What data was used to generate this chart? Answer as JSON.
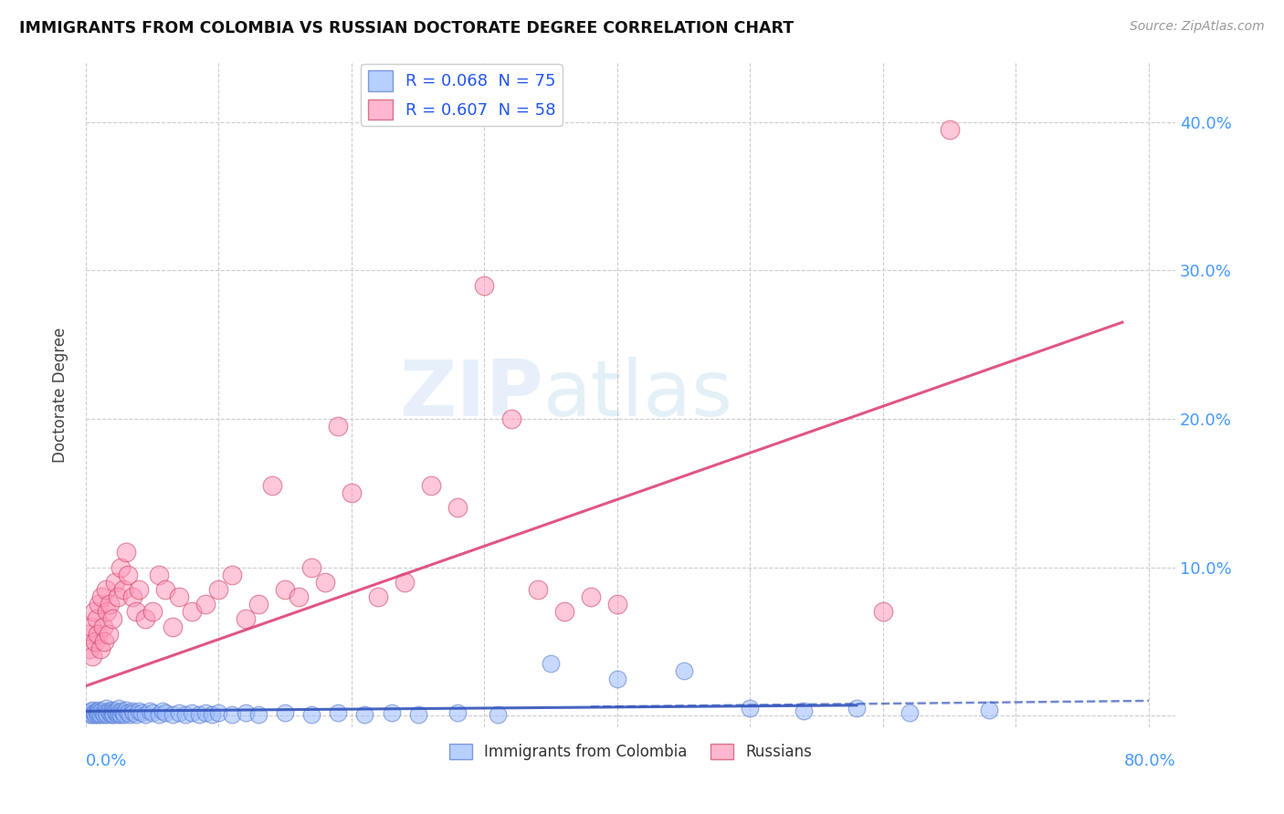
{
  "title": "IMMIGRANTS FROM COLOMBIA VS RUSSIAN DOCTORATE DEGREE CORRELATION CHART",
  "source": "Source: ZipAtlas.com",
  "ylabel": "Doctorate Degree",
  "ytick_values": [
    0.0,
    0.1,
    0.2,
    0.3,
    0.4
  ],
  "xlim": [
    0.0,
    0.82
  ],
  "ylim": [
    -0.008,
    0.44
  ],
  "legend_colombia": "R = 0.068  N = 75",
  "legend_russia": "R = 0.607  N = 58",
  "colombia_color": "#99BBFF",
  "russia_color": "#FF99BB",
  "colombia_edge": "#5577CC",
  "russia_edge": "#CC4466",
  "trend_colombia_color": "#3355BB",
  "trend_russia_color": "#DD4477",
  "watermark_zip": "ZIP",
  "watermark_atlas": "atlas",
  "background_color": "#FFFFFF",
  "grid_color": "#CCCCCC",
  "axis_label_color": "#4499FF",
  "colombia_points_x": [
    0.002,
    0.003,
    0.004,
    0.005,
    0.005,
    0.006,
    0.007,
    0.008,
    0.008,
    0.009,
    0.01,
    0.01,
    0.011,
    0.012,
    0.013,
    0.014,
    0.015,
    0.015,
    0.016,
    0.017,
    0.018,
    0.019,
    0.02,
    0.02,
    0.021,
    0.022,
    0.023,
    0.024,
    0.025,
    0.025,
    0.026,
    0.027,
    0.028,
    0.029,
    0.03,
    0.032,
    0.033,
    0.035,
    0.036,
    0.038,
    0.04,
    0.042,
    0.045,
    0.048,
    0.05,
    0.055,
    0.058,
    0.06,
    0.065,
    0.07,
    0.075,
    0.08,
    0.085,
    0.09,
    0.095,
    0.1,
    0.11,
    0.12,
    0.13,
    0.15,
    0.17,
    0.19,
    0.21,
    0.23,
    0.25,
    0.28,
    0.31,
    0.35,
    0.4,
    0.45,
    0.5,
    0.54,
    0.58,
    0.62,
    0.68
  ],
  "colombia_points_y": [
    0.002,
    0.001,
    0.003,
    0.001,
    0.004,
    0.002,
    0.001,
    0.003,
    0.002,
    0.001,
    0.004,
    0.002,
    0.001,
    0.003,
    0.002,
    0.001,
    0.005,
    0.002,
    0.001,
    0.003,
    0.002,
    0.001,
    0.004,
    0.002,
    0.001,
    0.003,
    0.002,
    0.001,
    0.005,
    0.002,
    0.001,
    0.003,
    0.002,
    0.001,
    0.004,
    0.002,
    0.001,
    0.003,
    0.002,
    0.001,
    0.003,
    0.002,
    0.001,
    0.003,
    0.002,
    0.001,
    0.003,
    0.002,
    0.001,
    0.002,
    0.001,
    0.002,
    0.001,
    0.002,
    0.001,
    0.002,
    0.001,
    0.002,
    0.001,
    0.002,
    0.001,
    0.002,
    0.001,
    0.002,
    0.001,
    0.002,
    0.001,
    0.035,
    0.025,
    0.03,
    0.005,
    0.003,
    0.005,
    0.002,
    0.004
  ],
  "russia_points_x": [
    0.002,
    0.003,
    0.004,
    0.005,
    0.006,
    0.007,
    0.008,
    0.009,
    0.01,
    0.011,
    0.012,
    0.013,
    0.014,
    0.015,
    0.016,
    0.017,
    0.018,
    0.02,
    0.022,
    0.024,
    0.026,
    0.028,
    0.03,
    0.032,
    0.035,
    0.038,
    0.04,
    0.045,
    0.05,
    0.055,
    0.06,
    0.065,
    0.07,
    0.08,
    0.09,
    0.1,
    0.11,
    0.12,
    0.13,
    0.14,
    0.15,
    0.16,
    0.17,
    0.18,
    0.19,
    0.2,
    0.22,
    0.24,
    0.26,
    0.28,
    0.3,
    0.32,
    0.34,
    0.36,
    0.38,
    0.4,
    0.6,
    0.65
  ],
  "russia_points_y": [
    0.055,
    0.045,
    0.06,
    0.04,
    0.07,
    0.05,
    0.065,
    0.055,
    0.075,
    0.045,
    0.08,
    0.06,
    0.05,
    0.085,
    0.07,
    0.055,
    0.075,
    0.065,
    0.09,
    0.08,
    0.1,
    0.085,
    0.11,
    0.095,
    0.08,
    0.07,
    0.085,
    0.065,
    0.07,
    0.095,
    0.085,
    0.06,
    0.08,
    0.07,
    0.075,
    0.085,
    0.095,
    0.065,
    0.075,
    0.155,
    0.085,
    0.08,
    0.1,
    0.09,
    0.195,
    0.15,
    0.08,
    0.09,
    0.155,
    0.14,
    0.29,
    0.2,
    0.085,
    0.07,
    0.08,
    0.075,
    0.07,
    0.395
  ],
  "colombia_trend_x": [
    0.0,
    0.58
  ],
  "colombia_trend_y": [
    0.003,
    0.007
  ],
  "russia_trend_x": [
    0.0,
    0.78
  ],
  "russia_trend_y": [
    0.02,
    0.265
  ]
}
